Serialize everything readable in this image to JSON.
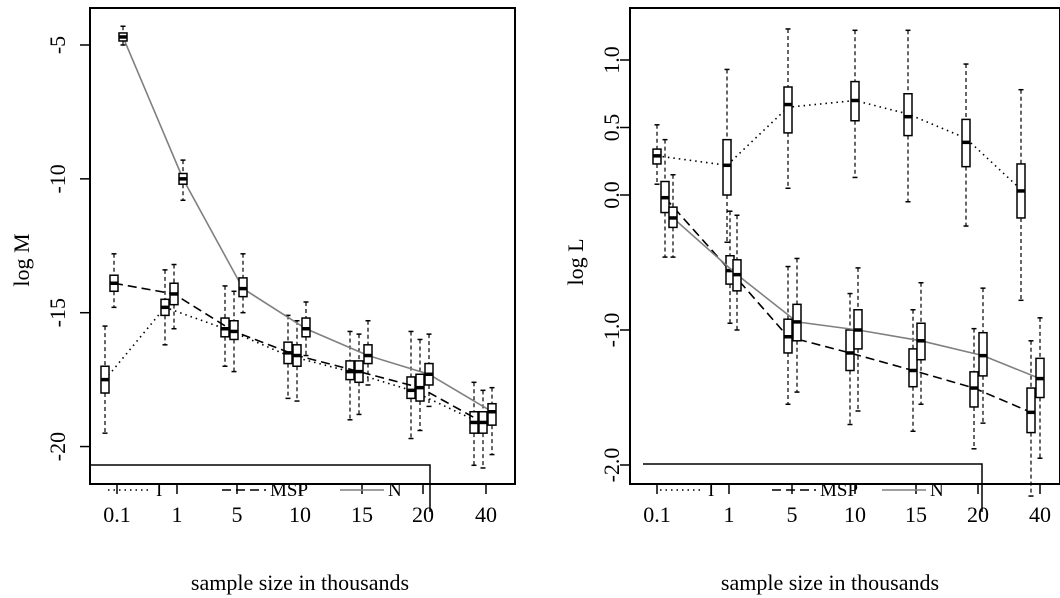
{
  "chart_data": [
    {
      "type": "box",
      "xlabel": "sample size in thousands",
      "ylabel": "log M",
      "categories": [
        "0.1",
        "1",
        "5",
        "10",
        "15",
        "20",
        "40"
      ],
      "yticks": [
        "-5",
        "-10",
        "-15",
        "-20"
      ],
      "ylim": [
        -22,
        -3
      ],
      "series": [
        {
          "name": "I",
          "line_style": "dotted",
          "color": "#000000",
          "line_values": [
            -17.5,
            -14.8,
            -15.6,
            -16.6,
            -17.2,
            -17.9,
            -19.0
          ],
          "boxes": [
            {
              "low": -19.5,
              "q1": -18.0,
              "median": -17.5,
              "q3": -17.0,
              "high": -15.5
            },
            {
              "low": -16.2,
              "q1": -15.1,
              "median": -14.8,
              "q3": -14.5,
              "high": -13.4
            },
            {
              "low": -17.0,
              "q1": -15.9,
              "median": -15.6,
              "q3": -15.2,
              "high": -14.0
            },
            {
              "low": -18.2,
              "q1": -16.9,
              "median": -16.5,
              "q3": -16.1,
              "high": -15.1
            },
            {
              "low": -19.0,
              "q1": -17.5,
              "median": -17.2,
              "q3": -16.8,
              "high": -15.7
            },
            {
              "low": -19.7,
              "q1": -18.2,
              "median": -17.9,
              "q3": -17.4,
              "high": -15.7
            },
            {
              "low": -20.7,
              "q1": -19.5,
              "median": -19.1,
              "q3": -18.7,
              "high": -17.6
            }
          ]
        },
        {
          "name": "MSP",
          "line_style": "dashed",
          "color": "#000000",
          "line_values": [
            -13.9,
            -14.3,
            -15.7,
            -16.6,
            -17.2,
            -17.8,
            -19.1
          ],
          "boxes": [
            {
              "low": -14.8,
              "q1": -14.2,
              "median": -13.9,
              "q3": -13.6,
              "high": -12.8
            },
            {
              "low": -15.6,
              "q1": -14.7,
              "median": -14.3,
              "q3": -13.9,
              "high": -13.2
            },
            {
              "low": -17.2,
              "q1": -16.0,
              "median": -15.7,
              "q3": -15.3,
              "high": -14.2
            },
            {
              "low": -18.3,
              "q1": -17.0,
              "median": -16.6,
              "q3": -16.2,
              "high": -15.3
            },
            {
              "low": -18.8,
              "q1": -17.6,
              "median": -17.2,
              "q3": -16.8,
              "high": -15.8
            },
            {
              "low": -19.4,
              "q1": -18.3,
              "median": -17.8,
              "q3": -17.3,
              "high": -16.0
            },
            {
              "low": -20.8,
              "q1": -19.5,
              "median": -19.1,
              "q3": -18.7,
              "high": -17.9
            }
          ]
        },
        {
          "name": "N",
          "line_style": "solid",
          "color": "#808080",
          "line_values": [
            -4.7,
            -10.0,
            -14.1,
            -15.6,
            -16.6,
            -17.3,
            -18.7
          ],
          "boxes": [
            {
              "low": -5.0,
              "q1": -4.85,
              "median": -4.7,
              "q3": -4.55,
              "high": -4.3
            },
            {
              "low": -10.8,
              "q1": -10.2,
              "median": -10.0,
              "q3": -9.8,
              "high": -9.3
            },
            {
              "low": -15.0,
              "q1": -14.4,
              "median": -14.1,
              "q3": -13.7,
              "high": -12.8
            },
            {
              "low": -16.6,
              "q1": -15.9,
              "median": -15.6,
              "q3": -15.2,
              "high": -14.6
            },
            {
              "low": -17.7,
              "q1": -16.9,
              "median": -16.6,
              "q3": -16.2,
              "high": -15.3
            },
            {
              "low": -18.5,
              "q1": -17.7,
              "median": -17.3,
              "q3": -16.9,
              "high": -15.8
            },
            {
              "low": -20.3,
              "q1": -19.2,
              "median": -18.7,
              "q3": -18.4,
              "high": -17.8
            }
          ]
        }
      ],
      "legend": [
        "I",
        "MSP",
        "N"
      ],
      "legend_position": "bottom"
    },
    {
      "type": "box",
      "xlabel": "sample size in thousands",
      "ylabel": "log L",
      "categories": [
        "0.1",
        "1",
        "5",
        "10",
        "15",
        "20",
        "40"
      ],
      "yticks": [
        "1.0",
        "0.5",
        "0.0",
        "-1.0",
        "-2.0"
      ],
      "ylim": [
        -2.5,
        1.4
      ],
      "series": [
        {
          "name": "I",
          "line_style": "dotted",
          "color": "#000000",
          "line_values": [
            0.29,
            0.22,
            0.65,
            0.7,
            0.6,
            0.42,
            0.04
          ],
          "boxes": [
            {
              "low": 0.08,
              "q1": 0.23,
              "median": 0.29,
              "q3": 0.34,
              "high": 0.52
            },
            {
              "low": -0.35,
              "q1": 0.0,
              "median": 0.22,
              "q3": 0.41,
              "high": 0.93
            },
            {
              "low": 0.05,
              "q1": 0.46,
              "median": 0.67,
              "q3": 0.8,
              "high": 1.23
            },
            {
              "low": 0.13,
              "q1": 0.55,
              "median": 0.7,
              "q3": 0.84,
              "high": 1.22
            },
            {
              "low": -0.05,
              "q1": 0.44,
              "median": 0.58,
              "q3": 0.75,
              "high": 1.22
            },
            {
              "low": -0.23,
              "q1": 0.21,
              "median": 0.39,
              "q3": 0.56,
              "high": 0.97
            },
            {
              "low": -0.78,
              "q1": -0.17,
              "median": 0.03,
              "q3": 0.23,
              "high": 0.78
            }
          ]
        },
        {
          "name": "MSP",
          "line_style": "dashed",
          "color": "#000000",
          "line_values": [
            -0.02,
            -0.56,
            -1.05,
            -1.17,
            -1.3,
            -1.43,
            -1.61
          ],
          "boxes": [
            {
              "low": -0.46,
              "q1": -0.13,
              "median": -0.02,
              "q3": 0.1,
              "high": 0.41
            },
            {
              "low": -0.95,
              "q1": -0.66,
              "median": -0.56,
              "q3": -0.45,
              "high": -0.12
            },
            {
              "low": -1.55,
              "q1": -1.17,
              "median": -1.05,
              "q3": -0.92,
              "high": -0.53
            },
            {
              "low": -1.7,
              "q1": -1.3,
              "median": -1.17,
              "q3": -1.0,
              "high": -0.73
            },
            {
              "low": -1.75,
              "q1": -1.42,
              "median": -1.3,
              "q3": -1.14,
              "high": -0.85
            },
            {
              "low": -1.88,
              "q1": -1.57,
              "median": -1.43,
              "q3": -1.31,
              "high": -0.99
            },
            {
              "low": -2.23,
              "q1": -1.76,
              "median": -1.61,
              "q3": -1.43,
              "high": -1.08
            }
          ]
        },
        {
          "name": "N",
          "line_style": "solid",
          "color": "#808080",
          "line_values": [
            -0.17,
            -0.59,
            -0.94,
            -1.0,
            -1.08,
            -1.19,
            -1.36
          ],
          "boxes": [
            {
              "low": -0.46,
              "q1": -0.24,
              "median": -0.17,
              "q3": -0.09,
              "high": 0.15
            },
            {
              "low": -1.0,
              "q1": -0.71,
              "median": -0.59,
              "q3": -0.48,
              "high": -0.15
            },
            {
              "low": -1.46,
              "q1": -1.08,
              "median": -0.94,
              "q3": -0.81,
              "high": -0.47
            },
            {
              "low": -1.6,
              "q1": -1.14,
              "median": -1.0,
              "q3": -0.85,
              "high": -0.54
            },
            {
              "low": -1.55,
              "q1": -1.22,
              "median": -1.08,
              "q3": -0.95,
              "high": -0.65
            },
            {
              "low": -1.69,
              "q1": -1.34,
              "median": -1.19,
              "q3": -1.02,
              "high": -0.69
            },
            {
              "low": -1.95,
              "q1": -1.5,
              "median": -1.36,
              "q3": -1.21,
              "high": -0.91
            }
          ]
        }
      ],
      "legend": [
        "I",
        "MSP",
        "N"
      ],
      "legend_position": "bottom"
    }
  ]
}
